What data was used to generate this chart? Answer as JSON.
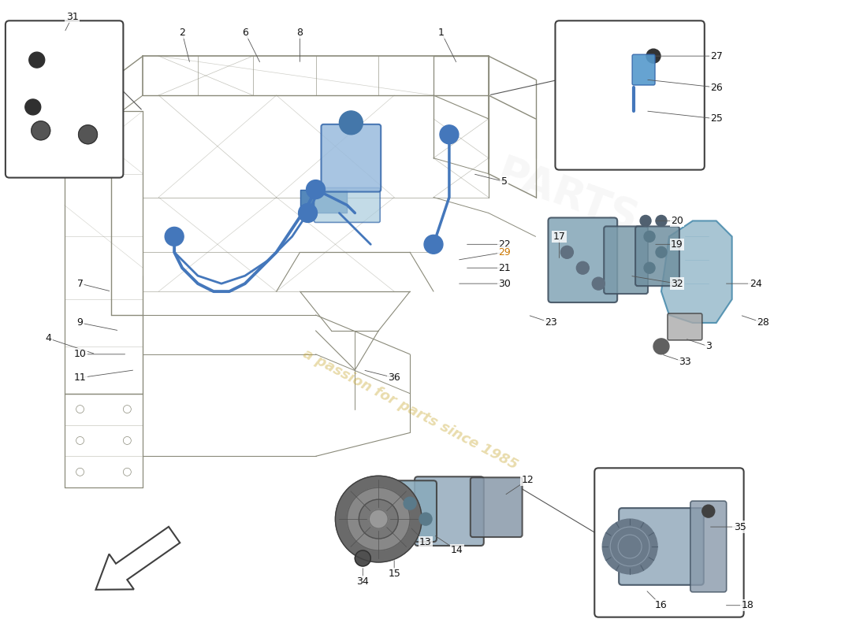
{
  "bg": "#ffffff",
  "watermark": "a passion for parts since 1985",
  "wm_color": "#c8a832",
  "wm_alpha": 0.4,
  "chassis_color": "#8a8a7a",
  "blue": "#4477bb",
  "blue_light": "#88aacc",
  "dark": "#404040",
  "label_fs": 9,
  "label_color": "#111111",
  "highlight_color": "#cc7700",
  "highlight_labels": [
    "29"
  ]
}
